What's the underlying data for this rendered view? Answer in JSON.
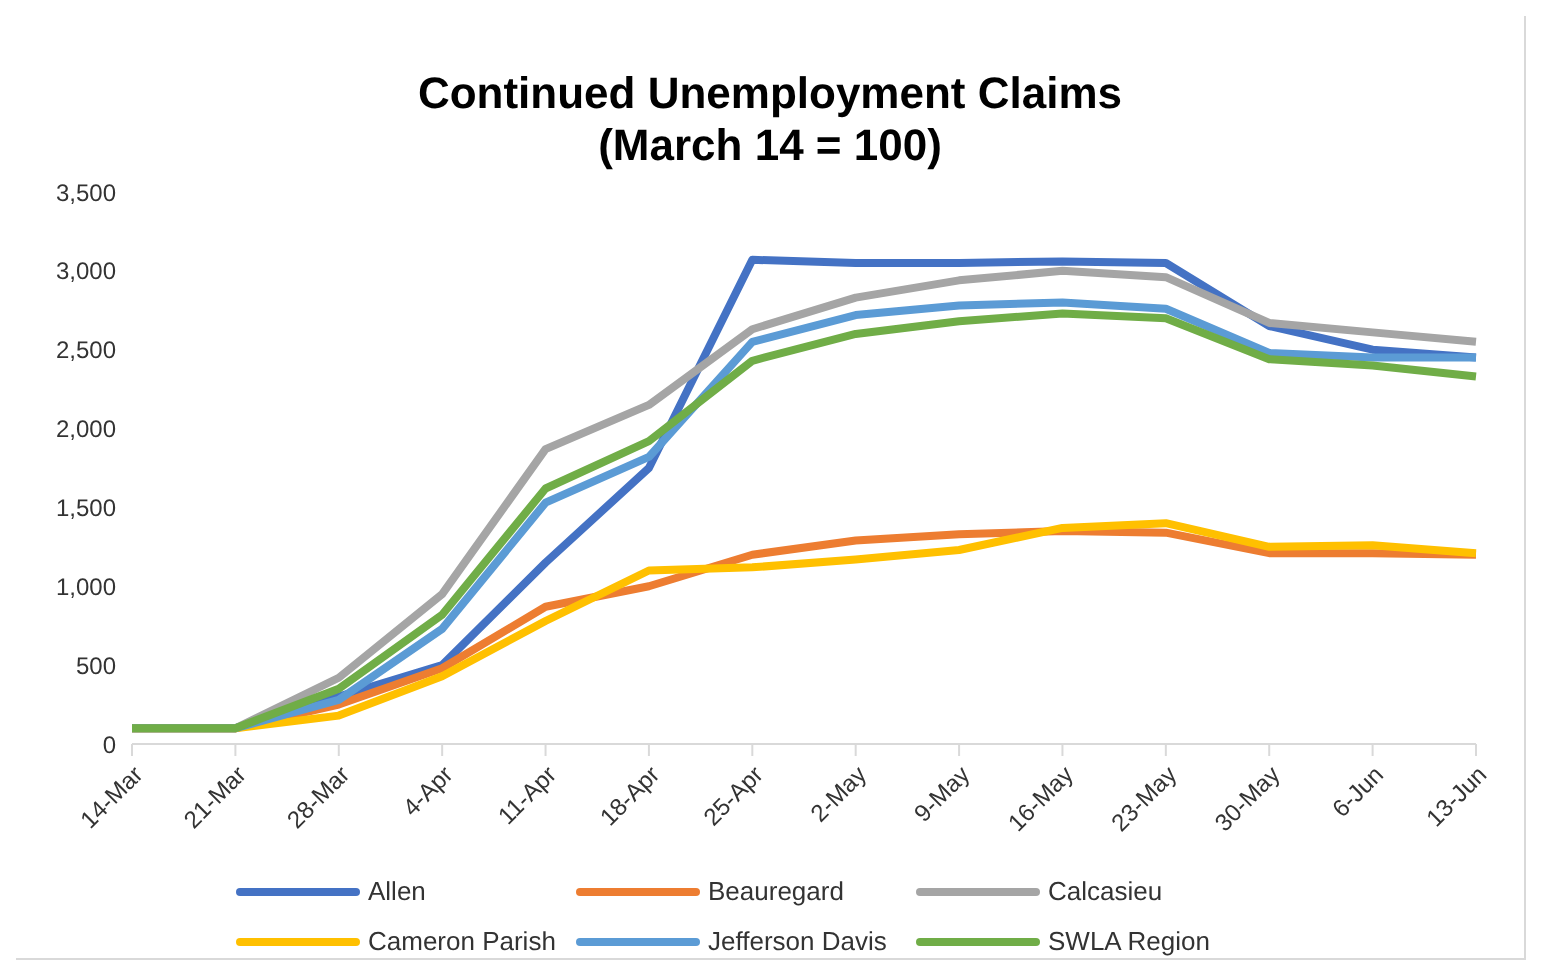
{
  "chart_data": {
    "type": "line",
    "title": "Continued Unemployment Claims\n(March 14 = 100)",
    "categories": [
      "14-Mar",
      "21-Mar",
      "28-Mar",
      "4-Apr",
      "11-Apr",
      "18-Apr",
      "25-Apr",
      "2-May",
      "9-May",
      "16-May",
      "23-May",
      "30-May",
      "6-Jun",
      "13-Jun"
    ],
    "series": [
      {
        "name": "Allen",
        "color": "#4472c4",
        "values": [
          100,
          100,
          300,
          500,
          1150,
          1750,
          3070,
          3050,
          3050,
          3060,
          3050,
          2650,
          2500,
          2450
        ]
      },
      {
        "name": "Beauregard",
        "color": "#ed7d31",
        "values": [
          100,
          100,
          250,
          480,
          870,
          1000,
          1200,
          1290,
          1330,
          1350,
          1340,
          1210,
          1210,
          1200
        ]
      },
      {
        "name": "Calcasieu",
        "color": "#a5a5a5",
        "values": [
          100,
          100,
          420,
          950,
          1870,
          2150,
          2630,
          2830,
          2940,
          3000,
          2960,
          2670,
          2610,
          2550
        ]
      },
      {
        "name": "Cameron Parish",
        "color": "#ffc000",
        "values": [
          100,
          100,
          180,
          430,
          780,
          1100,
          1120,
          1170,
          1230,
          1370,
          1400,
          1250,
          1260,
          1210
        ]
      },
      {
        "name": "Jefferson Davis",
        "color": "#5b9bd5",
        "values": [
          100,
          100,
          280,
          730,
          1530,
          1820,
          2550,
          2720,
          2780,
          2800,
          2760,
          2480,
          2450,
          2450
        ]
      },
      {
        "name": "SWLA Region",
        "color": "#70ad47",
        "values": [
          100,
          100,
          350,
          820,
          1620,
          1920,
          2430,
          2600,
          2680,
          2730,
          2700,
          2440,
          2400,
          2330
        ]
      }
    ],
    "ylim": [
      0,
      3500
    ],
    "yticks": [
      0,
      500,
      {
        "value": 1000,
        "label": "1,000"
      },
      {
        "value": 1500,
        "label": "1,500"
      },
      {
        "value": 2000,
        "label": "2,000"
      },
      {
        "value": 2500,
        "label": "2,500"
      },
      {
        "value": 3000,
        "label": "3,000"
      },
      {
        "value": 3500,
        "label": "3,500"
      }
    ],
    "grid": false,
    "legend": "bottom",
    "marker": "none",
    "line_style": "solid"
  }
}
